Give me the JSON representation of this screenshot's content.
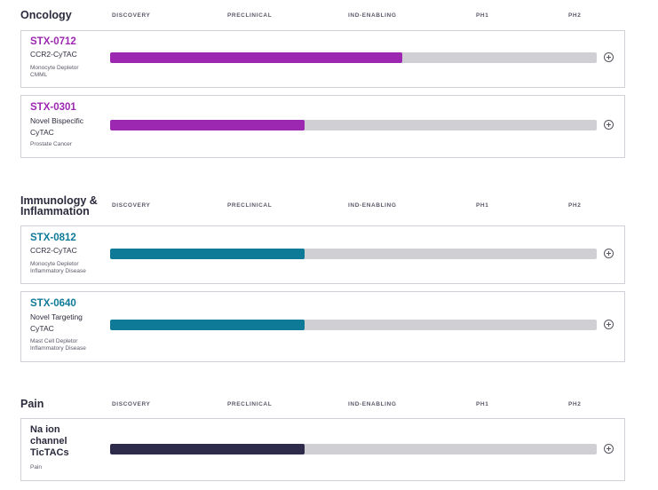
{
  "stages": [
    "DISCOVERY",
    "PRECLINICAL",
    "IND-ENABLING",
    "PH1",
    "PH2"
  ],
  "colors": {
    "oncology": "#9c27b0",
    "immunology": "#0e7a97",
    "pain": "#2d2a4a",
    "track": "#d0d0d4"
  },
  "oncology": {
    "title": "Oncology",
    "programs": [
      {
        "code": "STX-0712",
        "name": "CCR2-CyTAC",
        "desc1": "Monocyte Depletor",
        "desc2": "CMML",
        "progress": 0.6
      },
      {
        "code": "STX-0301",
        "name1": "Novel Bispecific",
        "name2": "CyTAC",
        "desc1": "Prostate Cancer",
        "progress": 0.4
      }
    ]
  },
  "immunology": {
    "title1": "Immunology &",
    "title2": "Inflammation",
    "programs": [
      {
        "code": "STX-0812",
        "name": "CCR2-CyTAC",
        "desc1": "Monocyte Depletor",
        "desc2": "Inflammatory Disease",
        "progress": 0.4
      },
      {
        "code": "STX-0640",
        "name1": "Novel Targeting",
        "name2": "CyTAC",
        "desc1": "Mast Cell Depletor",
        "desc2": "Inflammatory Disease",
        "progress": 0.4
      }
    ]
  },
  "pain": {
    "title": "Pain",
    "programs": [
      {
        "name1": "Na ion",
        "name2": "channel",
        "name3": "TicTACs",
        "desc1": "Pain",
        "progress": 0.4
      }
    ]
  }
}
